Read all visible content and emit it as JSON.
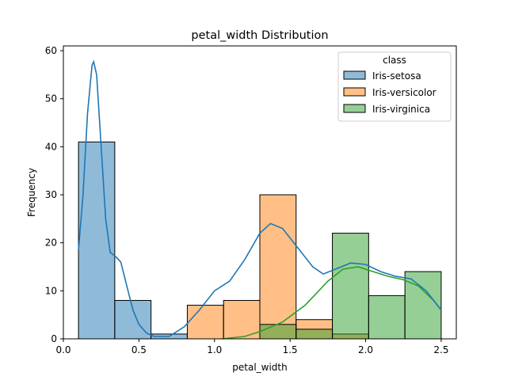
{
  "chart_data": {
    "type": "bar",
    "title": "petal_width Distribution",
    "xlabel": "petal_width",
    "ylabel": "Frequency",
    "xlim": [
      0.0,
      2.6
    ],
    "ylim": [
      0,
      61
    ],
    "x_ticks": [
      "0.0",
      "0.5",
      "1.0",
      "1.5",
      "2.0",
      "2.5"
    ],
    "x_tick_values": [
      0.0,
      0.5,
      1.0,
      1.5,
      2.0,
      2.5
    ],
    "y_ticks": [
      "0",
      "10",
      "20",
      "30",
      "40",
      "50",
      "60"
    ],
    "y_tick_values": [
      0,
      10,
      20,
      30,
      40,
      50,
      60
    ],
    "bin_edges": [
      0.1,
      0.34,
      0.58,
      0.82,
      1.06,
      1.3,
      1.54,
      1.78,
      2.02,
      2.26,
      2.5
    ],
    "grid": false,
    "legend": {
      "title": "class",
      "position": "top-right"
    },
    "series": [
      {
        "name": "Iris-setosa",
        "color": "#1f77b4",
        "counts": [
          41,
          8,
          1,
          0,
          0,
          0,
          0,
          0,
          0,
          0
        ],
        "kde": [
          [
            0.1,
            18.5
          ],
          [
            0.13,
            30
          ],
          [
            0.16,
            47
          ],
          [
            0.19,
            57
          ],
          [
            0.2,
            57.7
          ],
          [
            0.22,
            55
          ],
          [
            0.25,
            40
          ],
          [
            0.28,
            25
          ],
          [
            0.31,
            18
          ],
          [
            0.35,
            17
          ],
          [
            0.38,
            16
          ],
          [
            0.42,
            11
          ],
          [
            0.46,
            6
          ],
          [
            0.5,
            3
          ],
          [
            0.55,
            1.2
          ],
          [
            0.6,
            0.4
          ],
          [
            0.65,
            0
          ]
        ]
      },
      {
        "name": "Iris-versicolor",
        "color": "#ff7f0e",
        "counts": [
          0,
          0,
          0,
          7,
          8,
          30,
          4,
          1,
          0,
          0
        ],
        "kde": []
      },
      {
        "name": "Iris-virginica",
        "color": "#2ca02c",
        "counts": [
          0,
          0,
          0,
          0,
          0,
          3,
          2,
          22,
          9,
          14
        ],
        "kde": [
          [
            1.05,
            0
          ],
          [
            1.2,
            0.5
          ],
          [
            1.3,
            1.5
          ],
          [
            1.45,
            3.5
          ],
          [
            1.6,
            7
          ],
          [
            1.75,
            12
          ],
          [
            1.85,
            14.5
          ],
          [
            1.95,
            15
          ],
          [
            2.05,
            14
          ],
          [
            2.15,
            13
          ],
          [
            2.25,
            12.3
          ],
          [
            2.35,
            11
          ],
          [
            2.45,
            8
          ],
          [
            2.5,
            6
          ]
        ]
      }
    ],
    "total_kde": {
      "color": "#1f77b4",
      "points": [
        [
          0.1,
          18.5
        ],
        [
          0.13,
          30
        ],
        [
          0.16,
          47
        ],
        [
          0.19,
          57
        ],
        [
          0.2,
          57.7
        ],
        [
          0.22,
          55
        ],
        [
          0.25,
          40
        ],
        [
          0.28,
          25
        ],
        [
          0.31,
          18
        ],
        [
          0.35,
          17
        ],
        [
          0.38,
          16
        ],
        [
          0.42,
          11
        ],
        [
          0.46,
          6
        ],
        [
          0.5,
          3
        ],
        [
          0.55,
          1.2
        ],
        [
          0.6,
          0.5
        ],
        [
          0.7,
          0.5
        ],
        [
          0.8,
          2.5
        ],
        [
          0.9,
          6
        ],
        [
          1.0,
          10
        ],
        [
          1.1,
          12
        ],
        [
          1.2,
          16.5
        ],
        [
          1.3,
          22
        ],
        [
          1.37,
          24
        ],
        [
          1.45,
          23
        ],
        [
          1.55,
          19
        ],
        [
          1.65,
          15
        ],
        [
          1.72,
          13.5
        ],
        [
          1.8,
          14.5
        ],
        [
          1.9,
          15.8
        ],
        [
          2.0,
          15.5
        ],
        [
          2.1,
          14
        ],
        [
          2.2,
          13
        ],
        [
          2.3,
          12.5
        ],
        [
          2.4,
          10
        ],
        [
          2.5,
          6
        ]
      ]
    }
  }
}
